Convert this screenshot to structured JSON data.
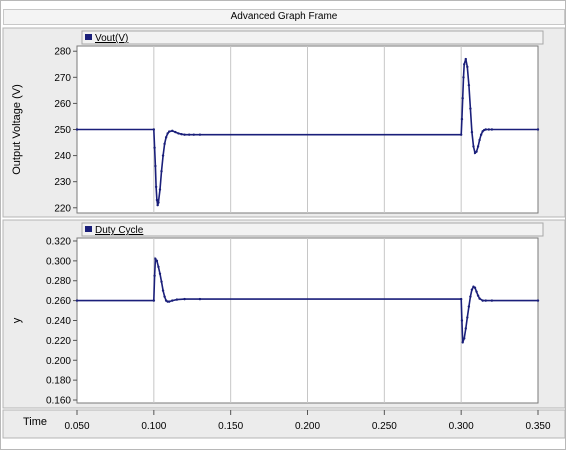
{
  "window": {
    "title": "Advanced Graph Frame"
  },
  "chart_data": [
    {
      "type": "line",
      "legend": "Vout(V)",
      "ylabel": "Output Voltage (V)",
      "xlim": [
        0.05,
        0.35
      ],
      "ylim": [
        218,
        282
      ],
      "yticks": [
        220,
        230,
        240,
        250,
        260,
        270,
        280
      ],
      "ytick_labels": [
        "220",
        "230",
        "240",
        "250",
        "260",
        "270",
        "280"
      ],
      "series": [
        {
          "name": "Vout(V)",
          "color": "#1a1f7a",
          "x": [
            0.05,
            0.1,
            0.1005,
            0.101,
            0.1015,
            0.102,
            0.1025,
            0.103,
            0.104,
            0.105,
            0.106,
            0.107,
            0.108,
            0.109,
            0.11,
            0.112,
            0.114,
            0.116,
            0.118,
            0.12,
            0.123,
            0.126,
            0.13,
            0.3,
            0.3005,
            0.301,
            0.3015,
            0.302,
            0.303,
            0.304,
            0.305,
            0.306,
            0.307,
            0.308,
            0.309,
            0.31,
            0.311,
            0.312,
            0.313,
            0.314,
            0.315,
            0.316,
            0.318,
            0.32,
            0.35
          ],
          "y": [
            250,
            250,
            243,
            236,
            228,
            223,
            221,
            222,
            227,
            234,
            240,
            244.5,
            247,
            248.5,
            249.2,
            249.5,
            249,
            248.5,
            248.2,
            248,
            248,
            248,
            248,
            248,
            254,
            262,
            270,
            275,
            277,
            274,
            267,
            258,
            249,
            243.5,
            241,
            241.5,
            243.5,
            246,
            248,
            249.3,
            249.8,
            250,
            250,
            250,
            250
          ]
        }
      ]
    },
    {
      "type": "line",
      "legend": "Duty Cycle",
      "ylabel": "y",
      "xlabel": "Time",
      "xlim": [
        0.05,
        0.35
      ],
      "ylim": [
        0.157,
        0.323
      ],
      "yticks": [
        0.16,
        0.18,
        0.2,
        0.22,
        0.24,
        0.26,
        0.28,
        0.3,
        0.32
      ],
      "ytick_labels": [
        "0.160",
        "0.180",
        "0.200",
        "0.220",
        "0.240",
        "0.260",
        "0.280",
        "0.300",
        "0.320"
      ],
      "xticks": [
        0.05,
        0.1,
        0.15,
        0.2,
        0.25,
        0.3,
        0.35
      ],
      "xtick_labels": [
        "0.050",
        "0.100",
        "0.150",
        "0.200",
        "0.250",
        "0.300",
        "0.350"
      ],
      "series": [
        {
          "name": "Duty Cycle",
          "color": "#1a1f7a",
          "x": [
            0.05,
            0.1,
            0.1005,
            0.101,
            0.102,
            0.103,
            0.104,
            0.105,
            0.106,
            0.107,
            0.108,
            0.109,
            0.11,
            0.112,
            0.115,
            0.12,
            0.13,
            0.3,
            0.3005,
            0.301,
            0.302,
            0.303,
            0.304,
            0.305,
            0.306,
            0.307,
            0.308,
            0.309,
            0.31,
            0.311,
            0.312,
            0.314,
            0.316,
            0.32,
            0.35
          ],
          "y": [
            0.26,
            0.26,
            0.285,
            0.302,
            0.3,
            0.294,
            0.287,
            0.279,
            0.27,
            0.264,
            0.26,
            0.259,
            0.259,
            0.26,
            0.261,
            0.2615,
            0.2615,
            0.2615,
            0.24,
            0.218,
            0.222,
            0.232,
            0.243,
            0.254,
            0.264,
            0.271,
            0.274,
            0.273,
            0.269,
            0.265,
            0.262,
            0.26,
            0.26,
            0.26,
            0.26
          ]
        }
      ]
    }
  ]
}
